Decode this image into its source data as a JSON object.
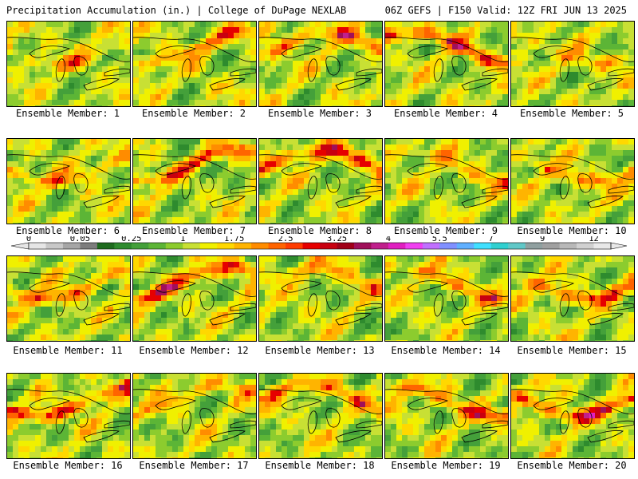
{
  "header": {
    "left": "Precipitation Accumulation (in.) | College of DuPage NEXLAB",
    "right": "06Z GEFS | F150 Valid: 12Z FRI JUN 13 2025"
  },
  "members": [
    {
      "label": "Ensemble Member: 1"
    },
    {
      "label": "Ensemble Member: 2"
    },
    {
      "label": "Ensemble Member: 3"
    },
    {
      "label": "Ensemble Member: 4"
    },
    {
      "label": "Ensemble Member: 5"
    },
    {
      "label": "Ensemble Member: 6"
    },
    {
      "label": "Ensemble Member: 7"
    },
    {
      "label": "Ensemble Member: 8"
    },
    {
      "label": "Ensemble Member: 9"
    },
    {
      "label": "Ensemble Member: 10"
    },
    {
      "label": "Ensemble Member: 11"
    },
    {
      "label": "Ensemble Member: 12"
    },
    {
      "label": "Ensemble Member: 13"
    },
    {
      "label": "Ensemble Member: 14"
    },
    {
      "label": "Ensemble Member: 15"
    },
    {
      "label": "Ensemble Member: 16"
    },
    {
      "label": "Ensemble Member: 17"
    },
    {
      "label": "Ensemble Member: 18"
    },
    {
      "label": "Ensemble Member: 19"
    },
    {
      "label": "Ensemble Member: 20"
    }
  ],
  "colorbar": {
    "labels": [
      {
        "text": "0",
        "bin": 0
      },
      {
        "text": "0.05",
        "bin": 3
      },
      {
        "text": "0.25",
        "bin": 6
      },
      {
        "text": "1",
        "bin": 9
      },
      {
        "text": "1.75",
        "bin": 12
      },
      {
        "text": "2.5",
        "bin": 15
      },
      {
        "text": "3.25",
        "bin": 18
      },
      {
        "text": "4",
        "bin": 21
      },
      {
        "text": "5.5",
        "bin": 24
      },
      {
        "text": "7",
        "bin": 27
      },
      {
        "text": "9",
        "bin": 30
      },
      {
        "text": "12",
        "bin": 33
      }
    ],
    "colors": [
      "#e6e6e6",
      "#c8c8c8",
      "#a6a6a6",
      "#7d7d7d",
      "#1e6b1e",
      "#2e8b2e",
      "#44a03a",
      "#5cb536",
      "#8ccc2e",
      "#c8e034",
      "#f0f000",
      "#ffd800",
      "#ffb400",
      "#ff8c00",
      "#ff6400",
      "#ff3c00",
      "#e60000",
      "#c80010",
      "#a00018",
      "#a0105a",
      "#c0208c",
      "#e020c0",
      "#f040f0",
      "#c070ff",
      "#8090ff",
      "#60b0ff",
      "#40e0ff",
      "#30d0d0",
      "#60c8c8",
      "#90a0a0",
      "#a0a0a0",
      "#b8b8b8",
      "#d0d0d0",
      "#e8e8e8"
    ]
  }
}
